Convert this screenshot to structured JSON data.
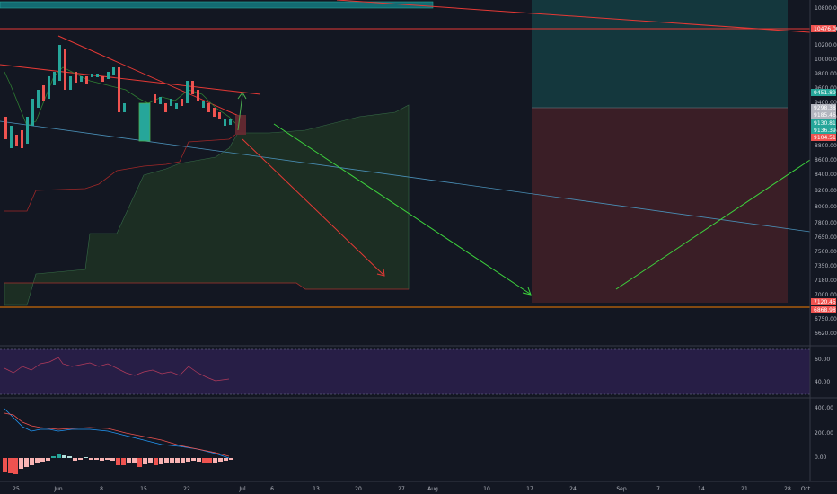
{
  "chart_data": [
    {
      "type": "candlestick",
      "panel": "price",
      "y_ticks": [
        "10800.00",
        "10476.00",
        "10200.00",
        "10000.00",
        "9800.00",
        "9600.00",
        "9400.00",
        "9200.00",
        "9000.00",
        "8800.00",
        "8600.00",
        "8400.00",
        "8200.00",
        "8000.00",
        "7800.00",
        "7650.00",
        "7500.00",
        "7350.00",
        "7180.00",
        "7000.00",
        "6750.00",
        "6620.00"
      ],
      "price_tags": [
        {
          "label": "10476.00",
          "color": "#ef5350"
        },
        {
          "label": "9451.89",
          "color": "#26a69a"
        },
        {
          "label": "9298.38",
          "color": "#b2b5be"
        },
        {
          "label": "9185.46",
          "color": "#b2b5be"
        },
        {
          "label": "9130.81",
          "color": "#26a69a"
        },
        {
          "label": "9136.39",
          "color": "#26a69a"
        },
        {
          "label": "9104.51",
          "color": "#ef5350"
        },
        {
          "label": "7120.45",
          "color": "#ef5350"
        },
        {
          "label": "6868.98",
          "color": "#ef5350"
        }
      ]
    },
    {
      "type": "line",
      "panel": "rsi",
      "y_ticks": [
        "60.00",
        "40.00"
      ]
    },
    {
      "type": "histogram",
      "panel": "macd",
      "y_ticks": [
        "400.00",
        "200.00",
        "0.00"
      ]
    }
  ],
  "x_axis": {
    "labels": [
      "25",
      "Jun",
      "8",
      "15",
      "22",
      "Jul",
      "6",
      "13",
      "20",
      "27",
      "Aug",
      "10",
      "17",
      "24",
      "Sep",
      "7",
      "14",
      "21",
      "28",
      "Oct"
    ]
  }
}
